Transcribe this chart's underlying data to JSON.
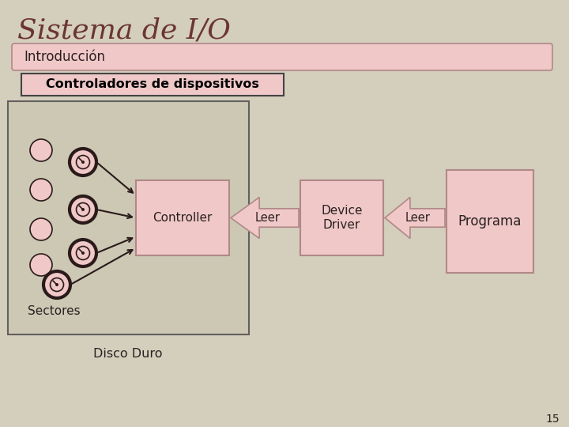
{
  "title": "Sistema de I/O",
  "bg_color": "#d4cebc",
  "pink_box_color": "#f0c8c8",
  "pink_box_edge": "#b08888",
  "dark_circle_edge": "#2a1a1a",
  "intro_label": "Introducción",
  "section_label": "Controladores de dispositivos",
  "controller_label": "Controller",
  "dd_label": "Device\nDriver",
  "programa_label": "Programa",
  "arrow1_label": "Leer",
  "arrow2_label": "Leer",
  "disk_label": "Sectores",
  "bottom_label": "Disco Duro",
  "page_num": "15",
  "title_color": "#6b3535",
  "text_dark": "#2a2020",
  "disk_box_bg": "#ccc8b4",
  "disk_box_edge": "#606060",
  "arrow_fill": "#f0c8c8",
  "arrow_edge": "#b08888"
}
